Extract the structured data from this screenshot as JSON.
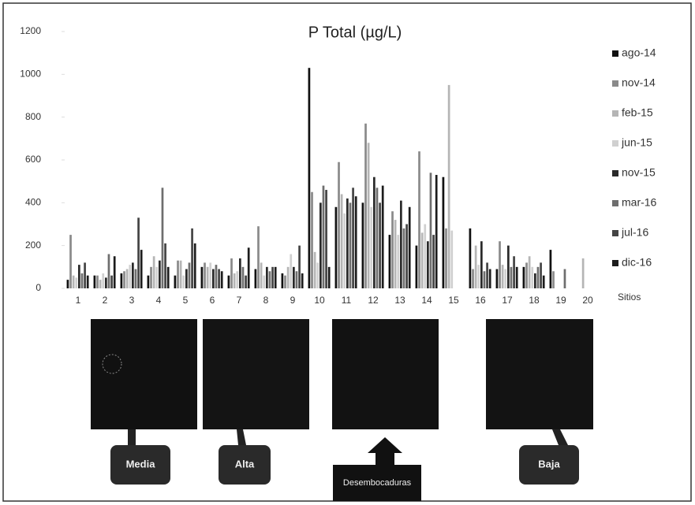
{
  "chart_data": {
    "type": "bar",
    "title": "P Total (µg/L)",
    "x_label": "Sitios",
    "categories": [
      "1",
      "2",
      "3",
      "4",
      "5",
      "6",
      "7",
      "8",
      "9",
      "10",
      "11",
      "12",
      "13",
      "14",
      "15",
      "16",
      "17",
      "18",
      "19",
      "20"
    ],
    "series": [
      {
        "name": "ago-14",
        "color": "#111111",
        "values": [
          40,
          60,
          70,
          60,
          60,
          100,
          60,
          90,
          70,
          1030,
          380,
          400,
          250,
          200,
          520,
          280,
          90,
          100,
          180,
          null
        ]
      },
      {
        "name": "nov-14",
        "color": "#8a8a8a",
        "values": [
          250,
          60,
          80,
          100,
          130,
          120,
          140,
          290,
          60,
          450,
          590,
          770,
          360,
          640,
          280,
          90,
          220,
          120,
          80,
          null
        ]
      },
      {
        "name": "feb-15",
        "color": "#b5b5b5",
        "values": [
          60,
          40,
          90,
          150,
          130,
          100,
          70,
          120,
          100,
          170,
          440,
          680,
          320,
          260,
          950,
          200,
          110,
          150,
          null,
          140
        ]
      },
      {
        "name": "jun-15",
        "color": "#d0d0d0",
        "values": [
          50,
          70,
          110,
          100,
          60,
          120,
          80,
          60,
          160,
          120,
          350,
          380,
          250,
          300,
          270,
          110,
          90,
          100,
          null,
          null
        ]
      },
      {
        "name": "nov-15",
        "color": "#2a2a2a",
        "values": [
          110,
          50,
          120,
          130,
          90,
          90,
          140,
          100,
          100,
          400,
          420,
          520,
          410,
          220,
          null,
          220,
          200,
          70,
          null,
          null
        ]
      },
      {
        "name": "mar-16",
        "color": "#6e6e6e",
        "values": [
          70,
          160,
          90,
          470,
          120,
          110,
          100,
          80,
          80,
          480,
          400,
          470,
          280,
          540,
          null,
          80,
          100,
          100,
          90,
          null
        ]
      },
      {
        "name": "jul-16",
        "color": "#444444",
        "values": [
          120,
          60,
          330,
          210,
          280,
          90,
          60,
          100,
          200,
          460,
          470,
          400,
          300,
          250,
          null,
          120,
          150,
          120,
          null,
          null
        ]
      },
      {
        "name": "dic-16",
        "color": "#1c1c1c",
        "values": [
          60,
          150,
          180,
          100,
          210,
          80,
          190,
          100,
          70,
          100,
          430,
          480,
          380,
          530,
          null,
          90,
          100,
          60,
          null,
          null
        ]
      }
    ],
    "ylim": [
      0,
      1200
    ],
    "yticks": [
      0,
      200,
      400,
      600,
      800,
      1000,
      1200
    ],
    "legend": "right",
    "annotations": [
      "Media",
      "Alta",
      "Desembocaduras",
      "Baja"
    ]
  }
}
